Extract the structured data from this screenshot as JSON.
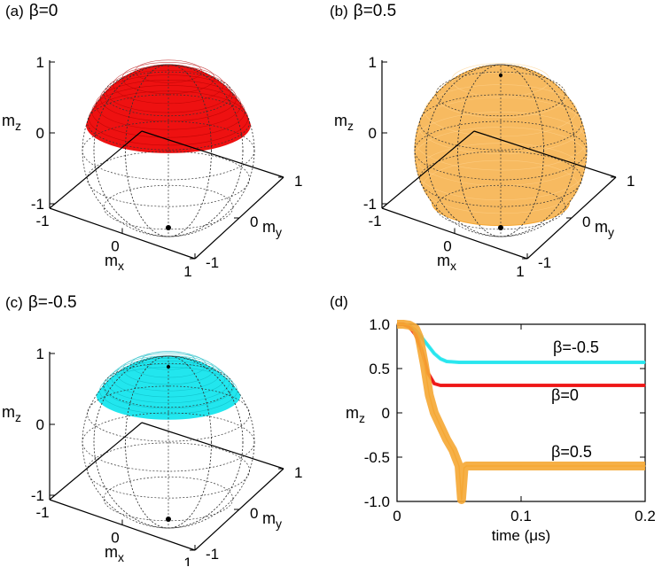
{
  "colors": {
    "beta_0": "#ee1111",
    "beta_05": "#f5a733",
    "beta_m05": "#22e6ee",
    "wire": "#333333"
  },
  "panels": {
    "a": {
      "label": "(a)",
      "beta": "β=0"
    },
    "b": {
      "label": "(b)",
      "beta": "β=0.5"
    },
    "c": {
      "label": "(c)",
      "beta": "β=-0.5"
    },
    "d": {
      "label": "(d)"
    }
  },
  "sphere_axes": {
    "mz_label": "m",
    "mz_sub": "z",
    "mx_label": "m",
    "mx_sub": "x",
    "my_label": "m",
    "my_sub": "y",
    "z_ticks": [
      "1",
      "0",
      "-1"
    ],
    "x_ticks": [
      "-1",
      "0",
      "1"
    ],
    "y_ticks": [
      "1",
      "0",
      "-1"
    ]
  },
  "chart_data": [
    {
      "type": "sphere-trajectory",
      "panel": "a",
      "title": "β=0",
      "beta": 0,
      "mz_cap_range": [
        0.3,
        1.0
      ],
      "axes": {
        "x": "mx",
        "y": "my",
        "z": "mz",
        "range": [
          -1,
          1
        ]
      }
    },
    {
      "type": "sphere-trajectory",
      "panel": "b",
      "title": "β=0.5",
      "beta": 0.5,
      "mz_cap_range": [
        -0.6,
        1.0
      ],
      "axes": {
        "x": "mx",
        "y": "my",
        "z": "mz",
        "range": [
          -1,
          1
        ]
      }
    },
    {
      "type": "sphere-trajectory",
      "panel": "c",
      "title": "β=-0.5",
      "beta": -0.5,
      "mz_cap_range": [
        0.55,
        1.0
      ],
      "axes": {
        "x": "mx",
        "y": "my",
        "z": "mz",
        "range": [
          -1,
          1
        ]
      }
    },
    {
      "type": "line",
      "panel": "d",
      "xlabel": "time (μs)",
      "ylabel": "m",
      "ylabel_sub": "z",
      "xlim": [
        0,
        0.2
      ],
      "ylim": [
        -1.0,
        1.0
      ],
      "xticks": [
        0,
        0.1,
        0.2
      ],
      "xtick_labels": [
        "0",
        "0.1",
        "0.2"
      ],
      "yticks": [
        1.0,
        0.5,
        0,
        -0.5,
        -1.0
      ],
      "ytick_labels": [
        "1.0",
        "0.5",
        "0",
        "-0.5",
        "-1.0"
      ],
      "series": [
        {
          "name": "β=-0.5",
          "color": "#22e6ee",
          "band": 0.02,
          "x": [
            0,
            0.005,
            0.01,
            0.015,
            0.02,
            0.025,
            0.03,
            0.035,
            0.04,
            0.05,
            0.06,
            0.1,
            0.15,
            0.2
          ],
          "y": [
            1.0,
            1.0,
            0.98,
            0.93,
            0.85,
            0.76,
            0.67,
            0.61,
            0.58,
            0.57,
            0.57,
            0.57,
            0.57,
            0.57
          ]
        },
        {
          "name": "β=0",
          "color": "#ee1111",
          "band": 0.02,
          "x": [
            0,
            0.005,
            0.01,
            0.015,
            0.02,
            0.025,
            0.03,
            0.035,
            0.04,
            0.05,
            0.1,
            0.15,
            0.2
          ],
          "y": [
            1.0,
            1.0,
            0.97,
            0.88,
            0.7,
            0.45,
            0.33,
            0.31,
            0.31,
            0.31,
            0.31,
            0.31,
            0.31
          ]
        },
        {
          "name": "β=0.5",
          "color": "#f5a733",
          "band": 0.05,
          "x": [
            0,
            0.005,
            0.01,
            0.015,
            0.018,
            0.022,
            0.026,
            0.03,
            0.035,
            0.04,
            0.045,
            0.05,
            0.052,
            0.054,
            0.056,
            0.06,
            0.1,
            0.15,
            0.2
          ],
          "y": [
            1.0,
            1.0,
            0.99,
            0.95,
            0.85,
            0.55,
            0.2,
            0.0,
            -0.15,
            -0.3,
            -0.42,
            -0.6,
            -0.98,
            -0.62,
            -0.6,
            -0.6,
            -0.6,
            -0.6,
            -0.6
          ]
        }
      ]
    }
  ]
}
